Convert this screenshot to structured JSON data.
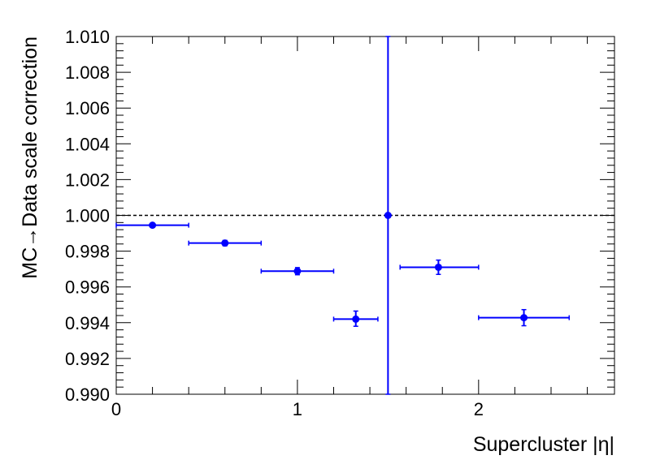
{
  "chart_data": {
    "type": "scatter",
    "title": "",
    "xlabel": "Supercluster |η|",
    "ylabel": "MC→Data scale correction",
    "xlim": [
      0,
      2.75
    ],
    "ylim": [
      0.99,
      1.01
    ],
    "x_major_ticks": [
      0,
      1,
      2
    ],
    "x_tick_labels": [
      "0",
      "1",
      "2"
    ],
    "y_major_ticks": [
      0.99,
      0.992,
      0.994,
      0.996,
      0.998,
      1.0,
      1.002,
      1.004,
      1.006,
      1.008,
      1.01
    ],
    "y_tick_labels": [
      "0.990",
      "0.992",
      "0.994",
      "0.996",
      "0.998",
      "1.000",
      "1.002",
      "1.004",
      "1.006",
      "1.008",
      "1.010"
    ],
    "grid": false,
    "reference_line": {
      "y": 1.0,
      "style": "dashed",
      "color": "#000000"
    },
    "series": [
      {
        "color": "#0000ff",
        "points": [
          {
            "x": 0.2,
            "xlow": 0.0,
            "xhigh": 0.4,
            "y": 0.99945,
            "ylow": 0.9994,
            "yhigh": 0.9995
          },
          {
            "x": 0.6,
            "xlow": 0.4,
            "xhigh": 0.8,
            "y": 0.99845,
            "ylow": 0.9983,
            "yhigh": 0.9986
          },
          {
            "x": 1.0,
            "xlow": 0.8,
            "xhigh": 1.2,
            "y": 0.99688,
            "ylow": 0.99668,
            "yhigh": 0.99708
          },
          {
            "x": 1.3222,
            "xlow": 1.2,
            "xhigh": 1.4442,
            "y": 0.9942,
            "ylow": 0.9938,
            "yhigh": 0.99465
          },
          {
            "x": 1.5,
            "xlow": 1.5,
            "xhigh": 1.5,
            "y": 1.0,
            "ylow": 0.99,
            "yhigh": 1.01
          },
          {
            "x": 1.7783,
            "xlow": 1.5666,
            "xhigh": 2.0,
            "y": 0.9971,
            "ylow": 0.9967,
            "yhigh": 0.9975
          },
          {
            "x": 2.25,
            "xlow": 2.0,
            "xhigh": 2.5,
            "y": 0.99428,
            "ylow": 0.99383,
            "yhigh": 0.99473
          }
        ]
      }
    ]
  }
}
